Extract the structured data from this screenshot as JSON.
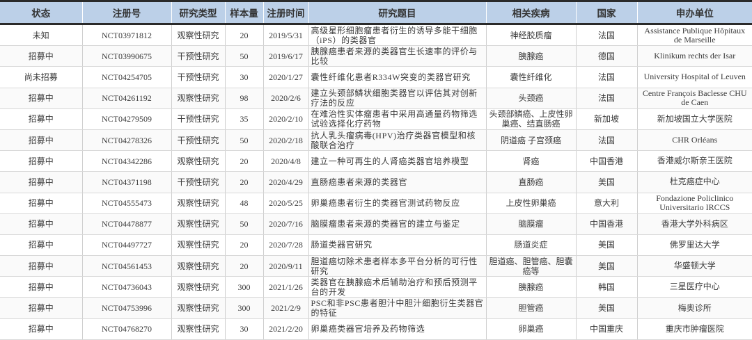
{
  "headers": [
    "状态",
    "注册号",
    "研究类型",
    "样本量",
    "注册时间",
    "研究题目",
    "相关疾病",
    "国家",
    "申办单位"
  ],
  "rows": [
    [
      "未知",
      "NCT03971812",
      "观察性研究",
      "20",
      "2019/5/31",
      "高级星形细胞瘤患者衍生的诱导多能干细胞（iPS）的类器官",
      "神经胶质瘤",
      "法国",
      "Assistance Publique Hôpitaux de Marseille"
    ],
    [
      "招募中",
      "NCT03990675",
      "干预性研究",
      "50",
      "2019/6/17",
      "胰腺癌患者来源的类器官生长速率的评价与比较",
      "胰腺癌",
      "德国",
      "Klinikum rechts der Isar"
    ],
    [
      "尚未招募",
      "NCT04254705",
      "干预性研究",
      "30",
      "2020/1/27",
      "囊性纤维化患者R334W突变的类器官研究",
      "囊性纤维化",
      "法国",
      "University Hospital of Leuven"
    ],
    [
      "招募中",
      "NCT04261192",
      "观察性研究",
      "98",
      "2020/2/6",
      "建立头颈部鳞状细胞类器官以评估其对创新疗法的反应",
      "头颈癌",
      "法国",
      "Centre François Baclesse CHU de Caen"
    ],
    [
      "招募中",
      "NCT04279509",
      "干预性研究",
      "35",
      "2020/2/10",
      "在难治性实体瘤患者中采用高通量药物筛选试验选择化疗药物",
      "头颈部鳞癌、上皮性卵巢癌、结直肠癌",
      "新加坡",
      "新加坡国立大学医院"
    ],
    [
      "招募中",
      "NCT04278326",
      "干预性研究",
      "50",
      "2020/2/18",
      "抗人乳头瘤病毒(HPV)治疗类器官模型和核酸联合治疗",
      "阴道癌 子宫颈癌",
      "法国",
      "CHR Orléans"
    ],
    [
      "招募中",
      "NCT04342286",
      "观察性研究",
      "20",
      "2020/4/8",
      "建立一种可再生的人肾癌类器官培养模型",
      "肾癌",
      "中国香港",
      "香港威尔斯亲王医院"
    ],
    [
      "招募中",
      "NCT04371198",
      "干预性研究",
      "20",
      "2020/4/29",
      "直肠癌患者来源的类器官",
      "直肠癌",
      "美国",
      "杜克癌症中心"
    ],
    [
      "招募中",
      "NCT04555473",
      "观察性研究",
      "48",
      "2020/5/25",
      "卵巢癌患者衍生的类器官测试药物反应",
      "上皮性卵巢癌",
      "意大利",
      "Fondazione Policlinico Universitario IRCCS"
    ],
    [
      "招募中",
      "NCT04478877",
      "观察性研究",
      "50",
      "2020/7/16",
      "脑膜瘤患者来源的类器官的建立与鉴定",
      "脑膜瘤",
      "中国香港",
      "香港大学外科病区"
    ],
    [
      "招募中",
      "NCT04497727",
      "观察性研究",
      "20",
      "2020/7/28",
      "肠道类器官研究",
      "肠道炎症",
      "美国",
      "佛罗里达大学"
    ],
    [
      "招募中",
      "NCT04561453",
      "观察性研究",
      "20",
      "2020/9/11",
      "胆道癌切除术患者样本多平台分析的可行性研究",
      "胆道癌、胆管癌、胆囊癌等",
      "美国",
      "华盛顿大学"
    ],
    [
      "招募中",
      "NCT04736043",
      "观察性研究",
      "300",
      "2021/1/26",
      "类器官在胰腺癌术后辅助治疗和预后预测平台的开发",
      "胰腺癌",
      "韩国",
      "三星医疗中心"
    ],
    [
      "招募中",
      "NCT04753996",
      "观察性研究",
      "300",
      "2021/2/9",
      "PSC和非PSC患者胆汁中胆汁细胞衍生类器官的特征",
      "胆管癌",
      "美国",
      "梅奥诊所"
    ],
    [
      "招募中",
      "NCT04768270",
      "观察性研究",
      "30",
      "2021/2/20",
      "卵巢癌类器官培养及药物筛选",
      "卵巢癌",
      "中国重庆",
      "重庆市肿瘤医院"
    ]
  ],
  "colors": {
    "header_bg": "#bcd0e8",
    "rule": "#2a2a2a"
  }
}
